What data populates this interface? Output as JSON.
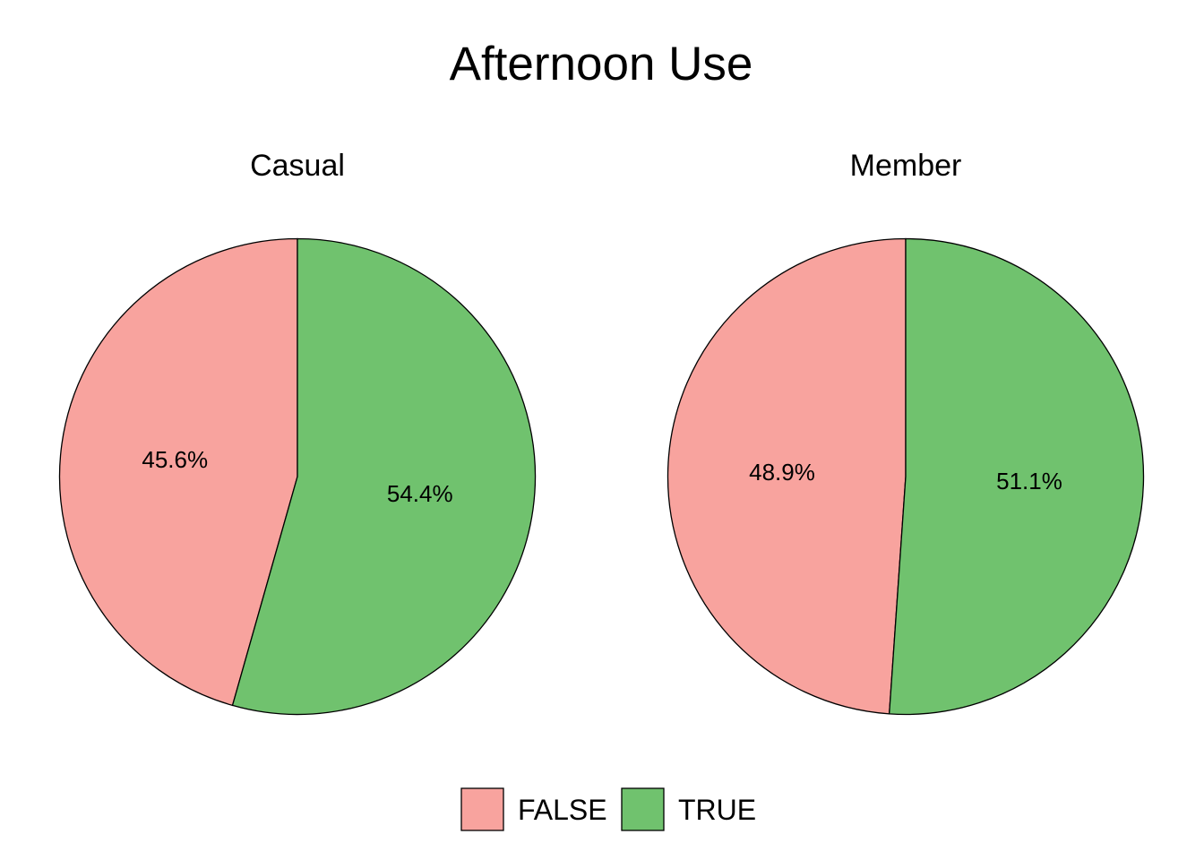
{
  "chart_data": {
    "type": "pie",
    "title": "Afternoon Use",
    "categories": [
      "FALSE",
      "TRUE"
    ],
    "colors": {
      "FALSE": "#F8A39E",
      "TRUE": "#70C26E"
    },
    "panels": [
      {
        "name": "Casual",
        "values": [
          45.6,
          54.4
        ],
        "labels": [
          "45.6%",
          "54.4%"
        ]
      },
      {
        "name": "Member",
        "values": [
          48.9,
          51.1
        ],
        "labels": [
          "48.9%",
          "51.1%"
        ]
      }
    ],
    "legend": {
      "placement": "bottom",
      "entries": [
        "FALSE",
        "TRUE"
      ]
    }
  }
}
